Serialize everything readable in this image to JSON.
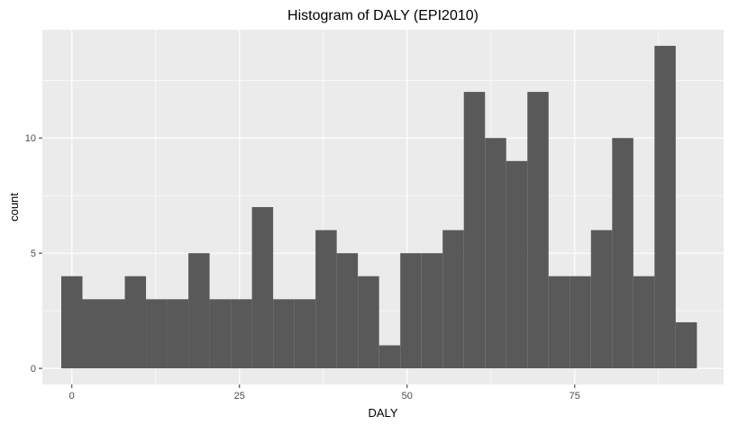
{
  "chart_data": {
    "type": "bar",
    "title": "Histogram of DALY (EPI2010)",
    "xlabel": "DALY",
    "ylabel": "count",
    "bin_width": 3.16,
    "bins": [
      {
        "x": 0.0,
        "count": 4
      },
      {
        "x": 3.16,
        "count": 3
      },
      {
        "x": 6.32,
        "count": 3
      },
      {
        "x": 9.48,
        "count": 4
      },
      {
        "x": 12.64,
        "count": 3
      },
      {
        "x": 15.8,
        "count": 3
      },
      {
        "x": 18.96,
        "count": 5
      },
      {
        "x": 22.12,
        "count": 3
      },
      {
        "x": 25.28,
        "count": 3
      },
      {
        "x": 28.44,
        "count": 7
      },
      {
        "x": 31.6,
        "count": 3
      },
      {
        "x": 34.76,
        "count": 3
      },
      {
        "x": 37.92,
        "count": 6
      },
      {
        "x": 41.08,
        "count": 5
      },
      {
        "x": 44.24,
        "count": 4
      },
      {
        "x": 47.4,
        "count": 1
      },
      {
        "x": 50.56,
        "count": 5
      },
      {
        "x": 53.72,
        "count": 5
      },
      {
        "x": 56.88,
        "count": 6
      },
      {
        "x": 60.04,
        "count": 12
      },
      {
        "x": 63.2,
        "count": 10
      },
      {
        "x": 66.36,
        "count": 9
      },
      {
        "x": 69.52,
        "count": 12
      },
      {
        "x": 72.68,
        "count": 4
      },
      {
        "x": 75.84,
        "count": 4
      },
      {
        "x": 79.0,
        "count": 6
      },
      {
        "x": 82.16,
        "count": 10
      },
      {
        "x": 85.32,
        "count": 4
      },
      {
        "x": 88.48,
        "count": 14
      },
      {
        "x": 91.64,
        "count": 2
      }
    ],
    "xticks": [
      0,
      25,
      50,
      75
    ],
    "yticks": [
      0,
      5,
      10
    ],
    "xlim": [
      -4.4,
      97.2
    ],
    "ylim": [
      -0.7,
      14.7
    ],
    "colors": {
      "bar": "#595959",
      "panel": "#ebebeb",
      "grid": "#ffffff"
    },
    "grid": true,
    "legend": "none"
  }
}
